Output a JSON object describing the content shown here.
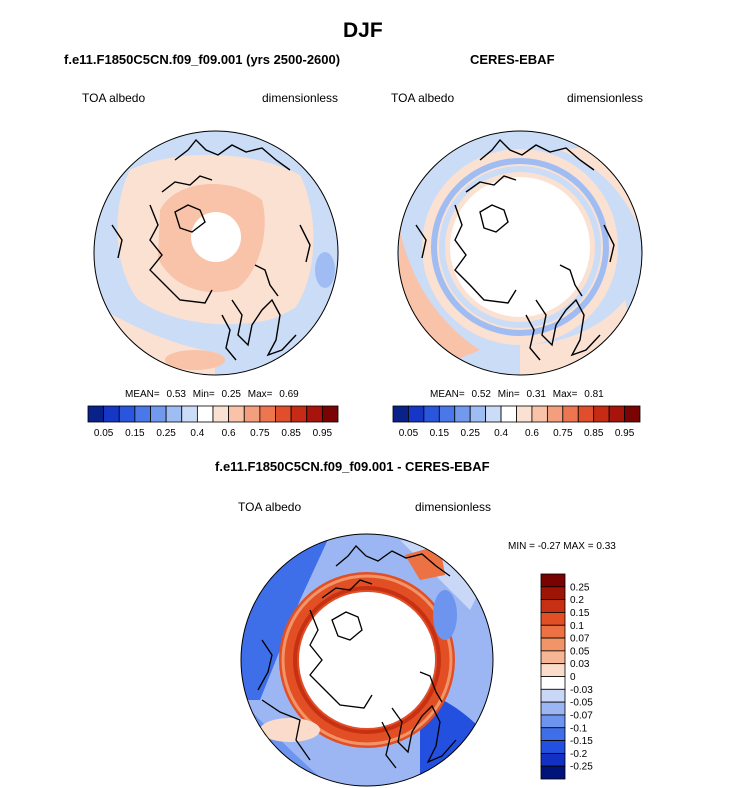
{
  "figure": {
    "title": "DJF",
    "panel_model": {
      "title": "f.e11.F1850C5CN.f09_f09.001 (yrs 2500-2600)",
      "variable": "TOA albedo",
      "units": "dimensionless",
      "mean_label": "MEAN=",
      "mean": "0.53",
      "min_label": "Min=",
      "min": "0.25",
      "max_label": "Max=",
      "max": "0.69"
    },
    "panel_obs": {
      "title": "CERES-EBAF",
      "variable": "TOA albedo",
      "units": "dimensionless",
      "mean_label": "MEAN=",
      "mean": "0.52",
      "min_label": "Min=",
      "min": "0.31",
      "max_label": "Max=",
      "max": "0.81"
    },
    "panel_diff": {
      "title": "f.e11.F1850C5CN.f09_f09.001 - CERES-EBAF",
      "variable": "TOA albedo",
      "units": "dimensionless",
      "minmax_text": "MIN =  -0.27 MAX =   0.33"
    }
  },
  "chart_data": [
    {
      "type": "heatmap",
      "projection": "north-polar-stereographic",
      "title": "f.e11.F1850C5CN.f09_f09.001 (yrs 2500-2600)",
      "colorbar_ticks": [
        "0.05",
        "0.15",
        "0.25",
        "0.4",
        "0.6",
        "0.75",
        "0.85",
        "0.95"
      ],
      "summary": {
        "mean": 0.53,
        "min": 0.25,
        "max": 0.69
      }
    },
    {
      "type": "heatmap",
      "projection": "north-polar-stereographic",
      "title": "CERES-EBAF",
      "colorbar_ticks": [
        "0.05",
        "0.15",
        "0.25",
        "0.4",
        "0.6",
        "0.75",
        "0.85",
        "0.95"
      ],
      "summary": {
        "mean": 0.52,
        "min": 0.31,
        "max": 0.81
      }
    },
    {
      "type": "heatmap",
      "projection": "north-polar-stereographic",
      "title": "f.e11.F1850C5CN.f09_f09.001 - CERES-EBAF",
      "colorbar_ticks": [
        "0.25",
        "0.2",
        "0.15",
        "0.1",
        "0.07",
        "0.05",
        "0.03",
        "0",
        "-0.03",
        "-0.05",
        "-0.07",
        "-0.1",
        "-0.15",
        "-0.2",
        "-0.25"
      ],
      "summary": {
        "min": -0.27,
        "max": 0.33
      }
    }
  ],
  "colors": {
    "abs_scale": [
      "#08228a",
      "#1636c6",
      "#2a55dd",
      "#4a78e8",
      "#7199ee",
      "#9fbcf3",
      "#cbdcf7",
      "#ffffff",
      "#fbe1d2",
      "#f8c3a9",
      "#f39f7d",
      "#ec7650",
      "#e04e2b",
      "#c52b15",
      "#a6140b",
      "#7a0403"
    ],
    "diff_scale": [
      "#00137a",
      "#1330c4",
      "#2450e0",
      "#3e6ee8",
      "#6d94ef",
      "#9cb6f3",
      "#c9d8f6",
      "#ffffff",
      "#fbdccb",
      "#f6b695",
      "#f19468",
      "#ec7143",
      "#e24f24",
      "#c73012",
      "#9e1506",
      "#780301"
    ]
  }
}
